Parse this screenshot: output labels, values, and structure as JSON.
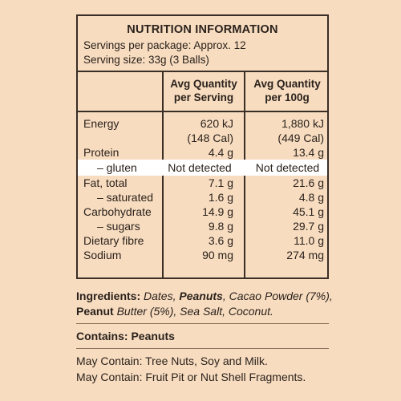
{
  "panel": {
    "title": "NUTRITION INFORMATION",
    "servings_per_package": "Servings per package: Approx. 12",
    "serving_size": "Serving size: 33g (3 Balls)",
    "col1_header_line1": "Avg Quantity",
    "col1_header_line2": "per Serving",
    "col2_header_line1": "Avg Quantity",
    "col2_header_line2": "per 100g",
    "rows": [
      {
        "label": "Energy",
        "per_serving": "620 kJ",
        "per_100g": "1,880 kJ"
      },
      {
        "label": "",
        "per_serving": "(148 Cal)",
        "per_100g": "(449 Cal)"
      },
      {
        "label": "Protein",
        "per_serving": "4.4 g",
        "per_100g": "13.4 g"
      },
      {
        "label": "– gluten",
        "per_serving": "Not detected",
        "per_100g": "Not detected"
      },
      {
        "label": "Fat, total",
        "per_serving": "7.1 g",
        "per_100g": "21.6 g"
      },
      {
        "label": "– saturated",
        "per_serving": "1.6 g",
        "per_100g": "4.8 g"
      },
      {
        "label": "Carbohydrate",
        "per_serving": "14.9 g",
        "per_100g": "45.1 g"
      },
      {
        "label": "– sugars",
        "per_serving": "9.8 g",
        "per_100g": "29.7 g"
      },
      {
        "label": "Dietary fibre",
        "per_serving": "3.6 g",
        "per_100g": "11.0 g"
      },
      {
        "label": "Sodium",
        "per_serving": "90 mg",
        "per_100g": "274 mg"
      }
    ]
  },
  "ingredients": {
    "label": "Ingredients:",
    "part1": "Dates, ",
    "peanuts": "Peanuts",
    "part2": ", Cacao Powder (7%),",
    "peanut": "Peanut",
    "part3": " Butter (5%), Sea Salt, Coconut."
  },
  "contains": "Contains: Peanuts",
  "may_contain_1": "May Contain: Tree Nuts, Soy and Milk.",
  "may_contain_2": "May Contain: Fruit Pit or Nut Shell Fragments."
}
